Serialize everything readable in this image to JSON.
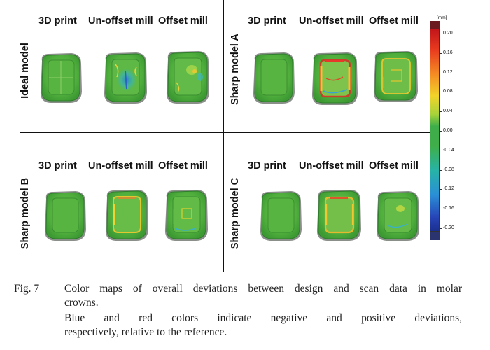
{
  "figure": {
    "column_labels": [
      "3D print",
      "Un-offset mill",
      "Offset mill"
    ],
    "row_labels": {
      "top_left": "Ideal model",
      "top_right": "Sharp model A",
      "bottom_left": "Sharp model B",
      "bottom_right": "Sharp model C"
    },
    "colorbar": {
      "unit": "[mm]",
      "ticks": [
        "0.20",
        "0.16",
        "0.12",
        "0.08",
        "0.04",
        "0.00",
        "-0.04",
        "-0.08",
        "-0.12",
        "-0.16",
        "-0.20"
      ],
      "top_color": "#6b1a1f",
      "bottom_color": "#2c3470"
    }
  },
  "caption": {
    "number": "Fig. 7",
    "line1": "Color maps of overall deviations between design and scan data in molar",
    "line2": "crowns.",
    "line3": "Blue and red colors indicate negative and positive deviations,",
    "line4": "respectively, relative to the reference."
  }
}
